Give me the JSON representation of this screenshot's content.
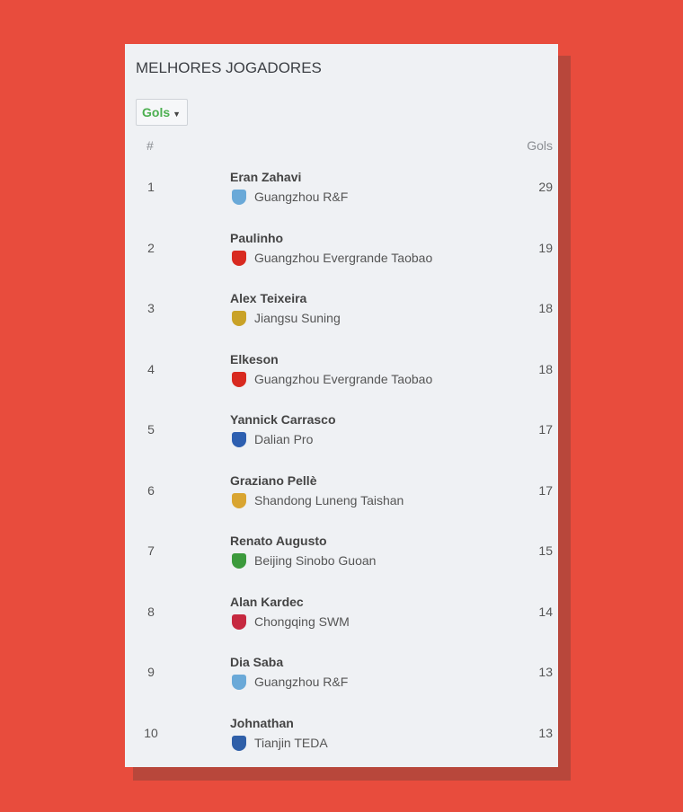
{
  "header": {
    "title": "MELHORES JOGADORES"
  },
  "filter": {
    "label": "Gols"
  },
  "columns": {
    "rank": "#",
    "stat": "Gols"
  },
  "rows": [
    {
      "rank": 1,
      "name": "Eran Zahavi",
      "team": "Guangzhou R&F",
      "goals": 29
    },
    {
      "rank": 2,
      "name": "Paulinho",
      "team": "Guangzhou Evergrande Taobao",
      "goals": 19
    },
    {
      "rank": 3,
      "name": "Alex Teixeira",
      "team": "Jiangsu Suning",
      "goals": 18
    },
    {
      "rank": 4,
      "name": "Elkeson",
      "team": "Guangzhou Evergrande Taobao",
      "goals": 18
    },
    {
      "rank": 5,
      "name": "Yannick Carrasco",
      "team": "Dalian Pro",
      "goals": 17
    },
    {
      "rank": 6,
      "name": "Graziano Pellè",
      "team": "Shandong Luneng Taishan",
      "goals": 17
    },
    {
      "rank": 7,
      "name": "Renato Augusto",
      "team": "Beijing Sinobo Guoan",
      "goals": 15
    },
    {
      "rank": 8,
      "name": "Alan Kardec",
      "team": "Chongqing SWM",
      "goals": 14
    },
    {
      "rank": 9,
      "name": "Dia Saba",
      "team": "Guangzhou R&F",
      "goals": 13
    },
    {
      "rank": 10,
      "name": "Johnathan",
      "team": "Tianjin TEDA",
      "goals": 13
    }
  ]
}
